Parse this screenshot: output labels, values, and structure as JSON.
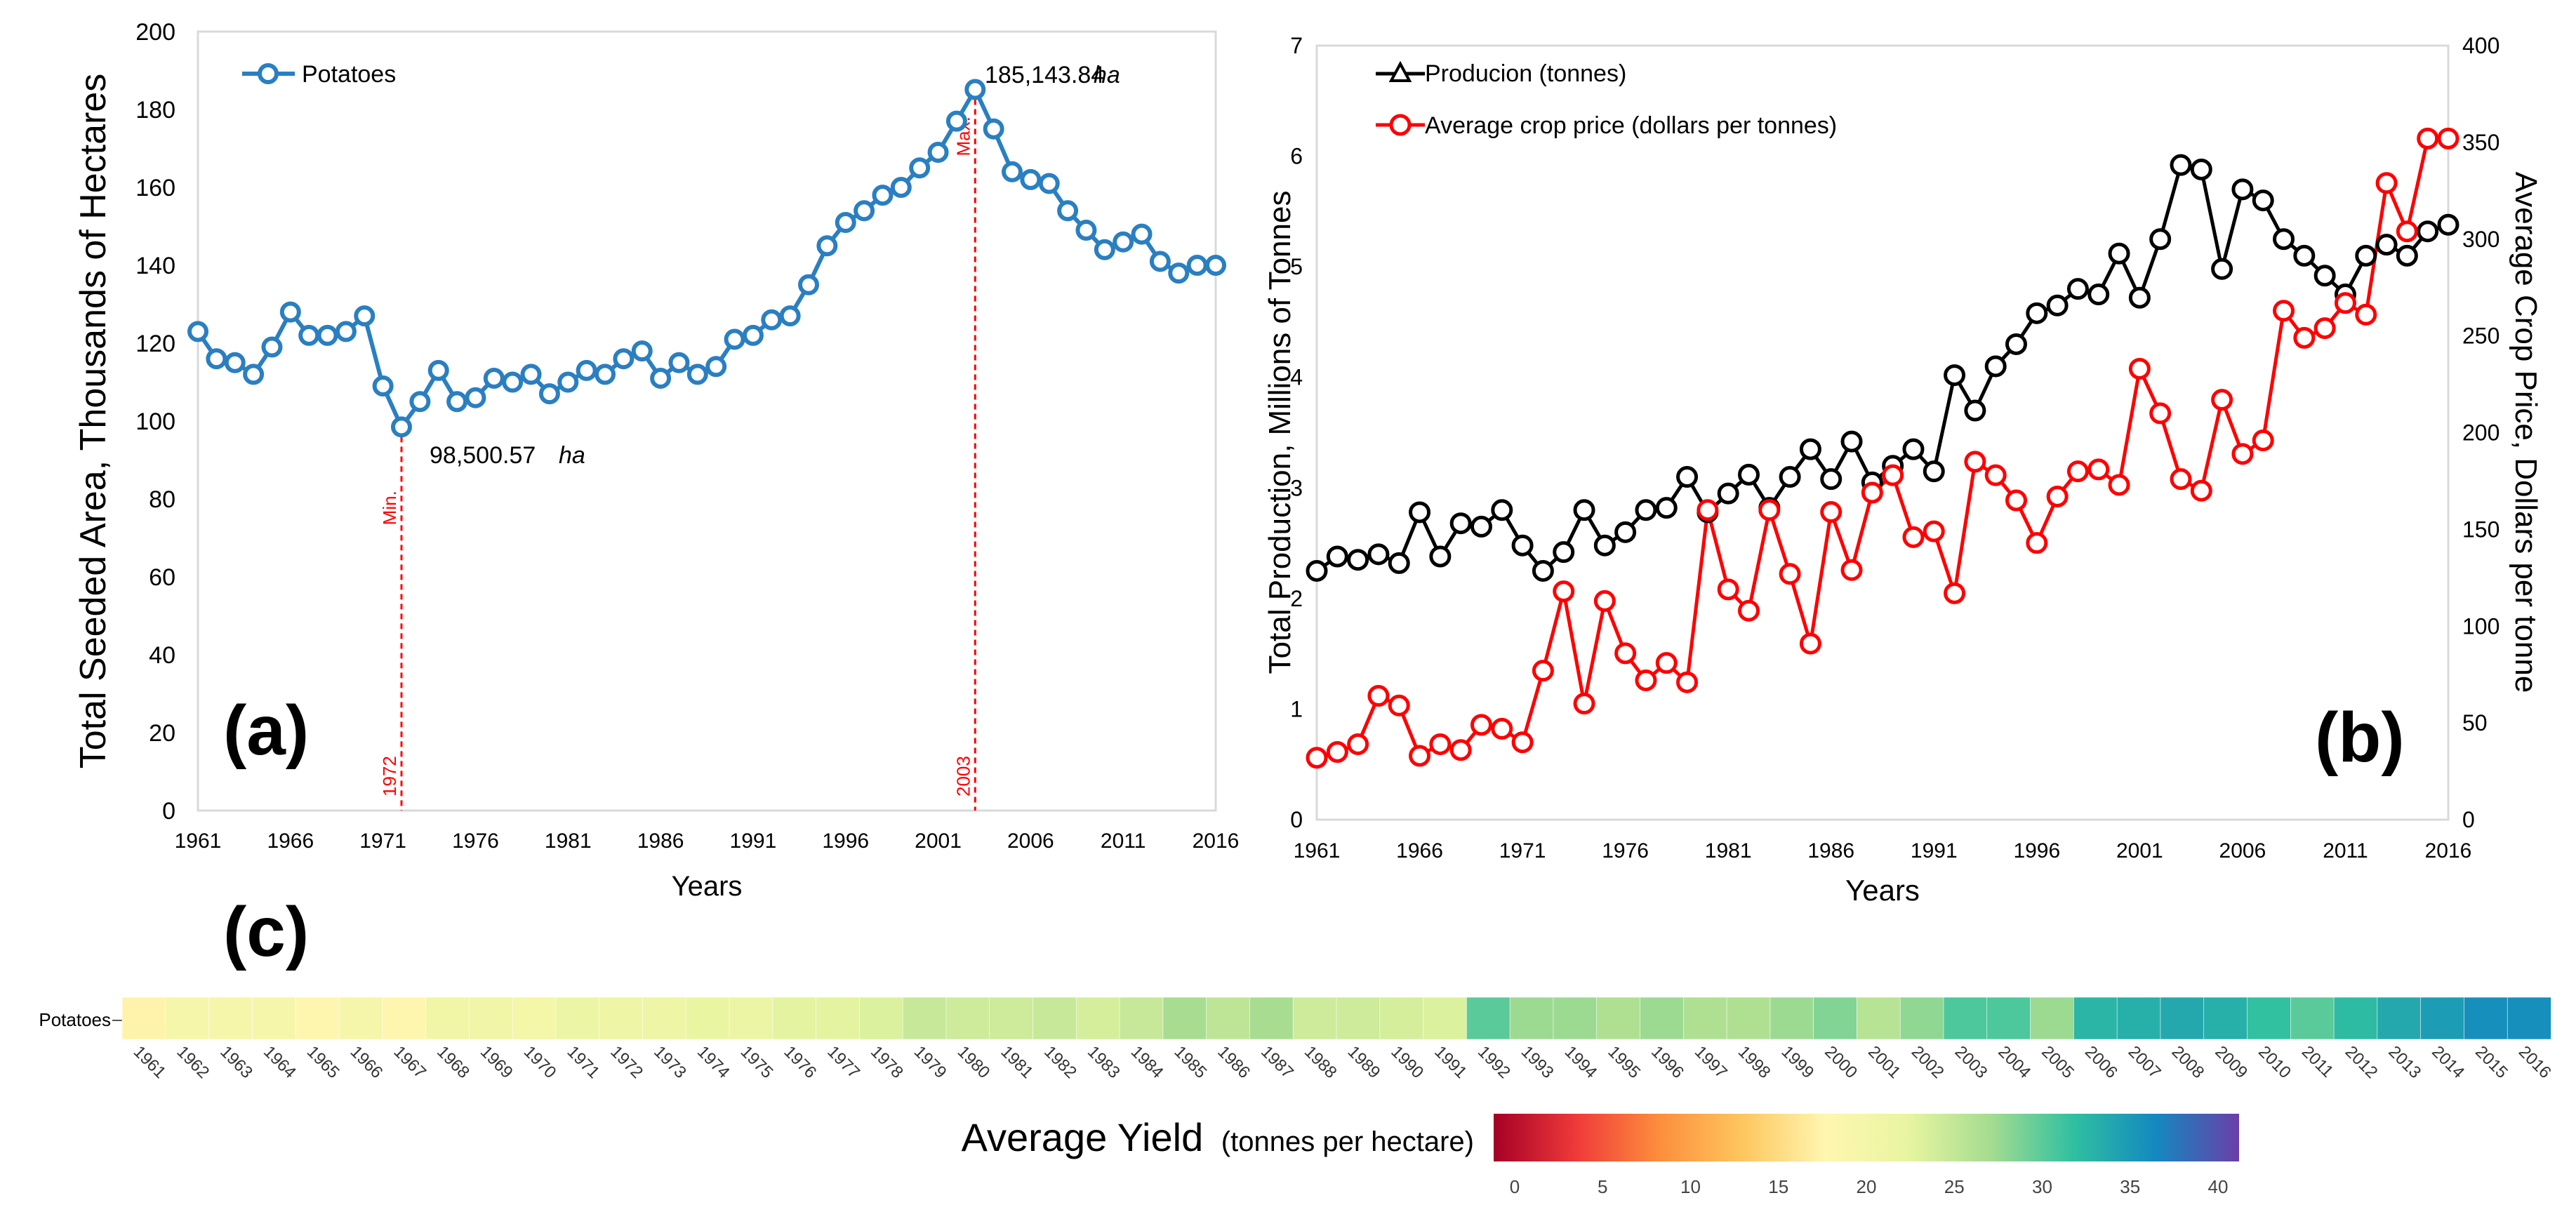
{
  "chart_data": [
    {
      "panel": "(a)",
      "type": "line",
      "title": "",
      "xlabel": "Years",
      "ylabel": "Total Seeded Area, Thousands of Hectares",
      "xlim": [
        1961,
        2016
      ],
      "ylim": [
        0,
        200
      ],
      "xticks": [
        1961,
        1966,
        1971,
        1976,
        1981,
        1986,
        1991,
        1996,
        2001,
        2006,
        2011,
        2016
      ],
      "yticks": [
        0,
        20,
        40,
        60,
        80,
        100,
        120,
        140,
        160,
        180,
        200
      ],
      "legend": [
        "Potatoes"
      ],
      "series": [
        {
          "name": "Potatoes",
          "color": "#2a7fc1",
          "x": [
            1961,
            1962,
            1963,
            1964,
            1965,
            1966,
            1967,
            1968,
            1969,
            1970,
            1971,
            1972,
            1973,
            1974,
            1975,
            1976,
            1977,
            1978,
            1979,
            1980,
            1981,
            1982,
            1983,
            1984,
            1985,
            1986,
            1987,
            1988,
            1989,
            1990,
            1991,
            1992,
            1993,
            1994,
            1995,
            1996,
            1997,
            1998,
            1999,
            2000,
            2001,
            2002,
            2003,
            2004,
            2005,
            2006,
            2007,
            2008,
            2009,
            2010,
            2011,
            2012,
            2013,
            2014,
            2015,
            2016
          ],
          "values": [
            123,
            116,
            115,
            112,
            119,
            128,
            122,
            122,
            123,
            127,
            109,
            98.5,
            105,
            113,
            105,
            106,
            111,
            110,
            112,
            107,
            110,
            113,
            112,
            116,
            118,
            111,
            115,
            112,
            114,
            121,
            122,
            126,
            127,
            135,
            145,
            151,
            154,
            158,
            160,
            165,
            169,
            177,
            185.14,
            175,
            164,
            162,
            161,
            154,
            149,
            144,
            146,
            148,
            141,
            138,
            140,
            140
          ]
        }
      ],
      "annotations": {
        "max": {
          "year": 2003,
          "label": "Max.",
          "value_text": "185,143.84",
          "unit": "ha"
        },
        "min": {
          "year": 1972,
          "label": "Min.",
          "value_text": "98,500.57",
          "unit": "ha"
        }
      }
    },
    {
      "panel": "(b)",
      "type": "line",
      "title": "",
      "xlabel": "Years",
      "ylabel": "Total Production, Millions of Tonnes",
      "ylabel_right": "Average Crop  Price, Dollars per tonne",
      "xlim": [
        1961,
        2016
      ],
      "ylim": [
        0,
        7
      ],
      "ylim_right": [
        0,
        400
      ],
      "xticks": [
        1961,
        1966,
        1971,
        1976,
        1981,
        1986,
        1991,
        1996,
        2001,
        2006,
        2011,
        2016
      ],
      "yticks": [
        0,
        1,
        2,
        3,
        4,
        5,
        6,
        7
      ],
      "yticks_right": [
        0,
        50,
        100,
        150,
        200,
        250,
        300,
        350,
        400
      ],
      "legend": [
        "Producion (tonnes)",
        "Average crop price (dollars per tonnes)"
      ],
      "series": [
        {
          "name": "Producion (tonnes)",
          "axis": "left",
          "color": "#000000",
          "x": [
            1961,
            1962,
            1963,
            1964,
            1965,
            1966,
            1967,
            1968,
            1969,
            1970,
            1971,
            1972,
            1973,
            1974,
            1975,
            1976,
            1977,
            1978,
            1979,
            1980,
            1981,
            1982,
            1983,
            1984,
            1985,
            1986,
            1987,
            1988,
            1989,
            1990,
            1991,
            1992,
            1993,
            1994,
            1995,
            1996,
            1997,
            1998,
            1999,
            2000,
            2001,
            2002,
            2003,
            2004,
            2005,
            2006,
            2007,
            2008,
            2009,
            2010,
            2011,
            2012,
            2013,
            2014,
            2015,
            2016
          ],
          "values": [
            2.25,
            2.38,
            2.35,
            2.4,
            2.32,
            2.78,
            2.38,
            2.68,
            2.65,
            2.8,
            2.48,
            2.25,
            2.42,
            2.8,
            2.48,
            2.6,
            2.8,
            2.82,
            3.1,
            2.78,
            2.95,
            3.12,
            2.82,
            3.1,
            3.35,
            3.08,
            3.42,
            3.05,
            3.2,
            3.35,
            3.15,
            4.02,
            3.7,
            4.1,
            4.3,
            4.58,
            4.65,
            4.8,
            4.75,
            5.12,
            4.72,
            5.25,
            5.92,
            5.88,
            4.98,
            5.7,
            5.6,
            5.25,
            5.1,
            4.92,
            4.75,
            5.1,
            5.2,
            5.1,
            5.32,
            5.38
          ]
        },
        {
          "name": "Average crop price (dollars per tonnes)",
          "axis": "right",
          "color": "#ff0000",
          "x": [
            1961,
            1962,
            1963,
            1964,
            1965,
            1966,
            1967,
            1968,
            1969,
            1970,
            1971,
            1972,
            1973,
            1974,
            1975,
            1976,
            1977,
            1978,
            1979,
            1980,
            1981,
            1982,
            1983,
            1984,
            1985,
            1986,
            1987,
            1988,
            1989,
            1990,
            1991,
            1992,
            1993,
            1994,
            1995,
            1996,
            1997,
            1998,
            1999,
            2000,
            2001,
            2002,
            2003,
            2004,
            2005,
            2006,
            2007,
            2008,
            2009,
            2010,
            2011,
            2012,
            2013,
            2014,
            2015,
            2016
          ],
          "values": [
            32,
            35,
            39,
            64,
            59,
            33,
            39,
            36,
            49,
            47,
            40,
            77,
            118,
            60,
            113,
            86,
            72,
            81,
            71,
            160,
            119,
            108,
            160,
            127,
            91,
            159,
            129,
            169,
            178,
            146,
            149,
            117,
            185,
            178,
            165,
            143,
            167,
            180,
            181,
            173,
            233,
            210,
            176,
            170,
            217,
            189,
            196,
            263,
            249,
            254,
            267,
            261,
            329,
            304,
            352,
            352
          ]
        }
      ]
    },
    {
      "panel": "(c)",
      "type": "heatmap",
      "title": "Average Yield (tonnes per hectare)",
      "row_labels": [
        "Potatoes"
      ],
      "categories": [
        1961,
        1962,
        1963,
        1964,
        1965,
        1966,
        1967,
        1968,
        1969,
        1970,
        1971,
        1972,
        1973,
        1974,
        1975,
        1976,
        1977,
        1978,
        1979,
        1980,
        1981,
        1982,
        1983,
        1984,
        1985,
        1986,
        1987,
        1988,
        1989,
        1990,
        1991,
        1992,
        1993,
        1994,
        1995,
        1996,
        1997,
        1998,
        1999,
        2000,
        2001,
        2002,
        2003,
        2004,
        2005,
        2006,
        2007,
        2008,
        2009,
        2010,
        2011,
        2012,
        2013,
        2014,
        2015,
        2016
      ],
      "values": [
        17.5,
        19.5,
        19.5,
        19.5,
        18.0,
        19.5,
        18.0,
        20.5,
        20.5,
        20.0,
        21.5,
        21.0,
        21.0,
        22.0,
        21.5,
        22.5,
        22.5,
        23.0,
        24.5,
        24.0,
        24.0,
        24.5,
        23.5,
        24.5,
        26.5,
        25.0,
        26.5,
        24.0,
        24.0,
        23.5,
        23.0,
        29.5,
        27.0,
        27.0,
        26.0,
        27.0,
        26.0,
        26.0,
        27.0,
        28.0,
        25.5,
        27.5,
        30.0,
        30.0,
        27.0,
        32.0,
        32.5,
        33.0,
        32.5,
        31.0,
        29.5,
        31.5,
        33.0,
        34.0,
        35.0,
        35.0
      ],
      "colorbar": {
        "label": "Average Yield",
        "unit_label": "(tonnes per hectare)",
        "min": 0,
        "max": 40,
        "ticks": [
          0,
          5,
          10,
          15,
          20,
          25,
          30,
          35,
          40
        ],
        "stops": [
          "#a50026",
          "#f03a3a",
          "#fd8e3c",
          "#fec65e",
          "#fff6b0",
          "#e8f5a0",
          "#a5dc90",
          "#2fc0a0",
          "#1488c0",
          "#6a3fa8"
        ]
      }
    }
  ],
  "panel_labels": {
    "a": "(a)",
    "b": "(b)",
    "c": "(c)"
  }
}
